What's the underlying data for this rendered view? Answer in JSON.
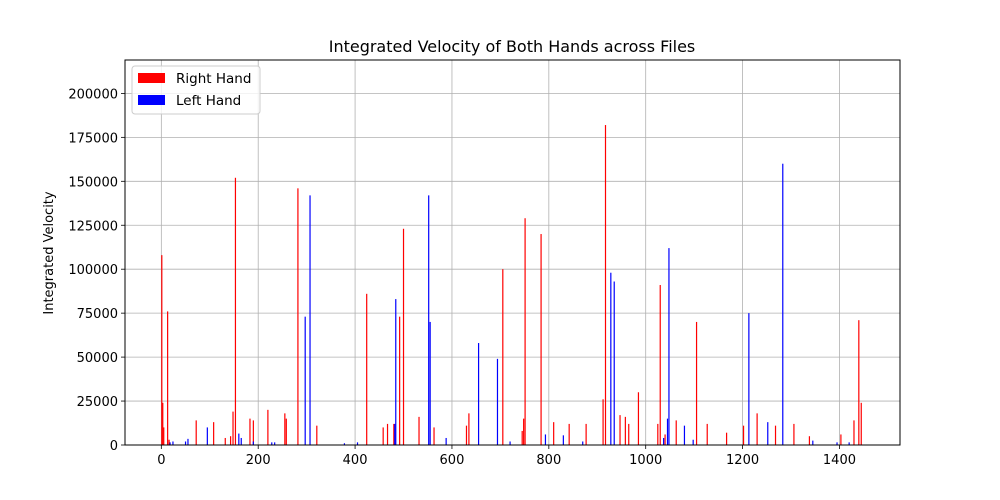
{
  "chart_data": {
    "type": "bar",
    "title": "Integrated Velocity of Both Hands across Files",
    "xlabel": "",
    "ylabel": "Integrated Velocity",
    "xlim": [
      -75,
      1525
    ],
    "ylim": [
      0,
      219000
    ],
    "xticks": [
      0,
      200,
      400,
      600,
      800,
      1000,
      1200,
      1400
    ],
    "yticks": [
      0,
      25000,
      50000,
      75000,
      100000,
      125000,
      150000,
      175000,
      200000
    ],
    "grid": true,
    "legend_position": "top-left",
    "series": [
      {
        "name": "Right Hand",
        "color": "#ff0000",
        "points": [
          [
            1,
            108000
          ],
          [
            3,
            24000
          ],
          [
            5,
            10000
          ],
          [
            13,
            76000
          ],
          [
            16,
            3000
          ],
          [
            72,
            14000
          ],
          [
            108,
            13000
          ],
          [
            132,
            4000
          ],
          [
            143,
            5000
          ],
          [
            148,
            19000
          ],
          [
            153,
            152000
          ],
          [
            183,
            15000
          ],
          [
            190,
            14000
          ],
          [
            220,
            20000
          ],
          [
            255,
            18000
          ],
          [
            258,
            15000
          ],
          [
            282,
            146000
          ],
          [
            321,
            11000
          ],
          [
            424,
            86000
          ],
          [
            458,
            10000
          ],
          [
            467,
            12000
          ],
          [
            480,
            12000
          ],
          [
            492,
            73000
          ],
          [
            500,
            123000
          ],
          [
            532,
            16000
          ],
          [
            563,
            10000
          ],
          [
            630,
            11000
          ],
          [
            635,
            18000
          ],
          [
            705,
            100000
          ],
          [
            745,
            8000
          ],
          [
            748,
            15000
          ],
          [
            751,
            129000
          ],
          [
            784,
            120000
          ],
          [
            810,
            13000
          ],
          [
            842,
            12000
          ],
          [
            877,
            12000
          ],
          [
            912,
            26000
          ],
          [
            917,
            182000
          ],
          [
            947,
            17000
          ],
          [
            958,
            16000
          ],
          [
            965,
            12000
          ],
          [
            985,
            30000
          ],
          [
            1025,
            12000
          ],
          [
            1030,
            91000
          ],
          [
            1040,
            6000
          ],
          [
            1063,
            14000
          ],
          [
            1105,
            70000
          ],
          [
            1127,
            12000
          ],
          [
            1167,
            7000
          ],
          [
            1202,
            11000
          ],
          [
            1230,
            18000
          ],
          [
            1268,
            11000
          ],
          [
            1306,
            12000
          ],
          [
            1338,
            5000
          ],
          [
            1403,
            6000
          ],
          [
            1430,
            14000
          ],
          [
            1440,
            71000
          ],
          [
            1445,
            24000
          ]
        ]
      },
      {
        "name": "Left Hand",
        "color": "#0000ff",
        "points": [
          [
            18,
            1500
          ],
          [
            24,
            2000
          ],
          [
            50,
            2000
          ],
          [
            55,
            3500
          ],
          [
            95,
            10000
          ],
          [
            160,
            6500
          ],
          [
            165,
            4000
          ],
          [
            190,
            2000
          ],
          [
            228,
            1500
          ],
          [
            234,
            1500
          ],
          [
            297,
            73000
          ],
          [
            307,
            142000
          ],
          [
            378,
            1000
          ],
          [
            405,
            1500
          ],
          [
            482,
            12000
          ],
          [
            484,
            83000
          ],
          [
            552,
            142000
          ],
          [
            555,
            70000
          ],
          [
            588,
            4000
          ],
          [
            655,
            58000
          ],
          [
            694,
            49000
          ],
          [
            720,
            2000
          ],
          [
            793,
            6000
          ],
          [
            830,
            5500
          ],
          [
            870,
            2000
          ],
          [
            928,
            98000
          ],
          [
            935,
            93000
          ],
          [
            1037,
            4000
          ],
          [
            1045,
            15000
          ],
          [
            1048,
            112000
          ],
          [
            1080,
            11000
          ],
          [
            1098,
            3000
          ],
          [
            1213,
            75000
          ],
          [
            1252,
            13000
          ],
          [
            1283,
            160000
          ],
          [
            1345,
            2500
          ],
          [
            1395,
            1500
          ],
          [
            1420,
            1500
          ]
        ]
      }
    ]
  }
}
